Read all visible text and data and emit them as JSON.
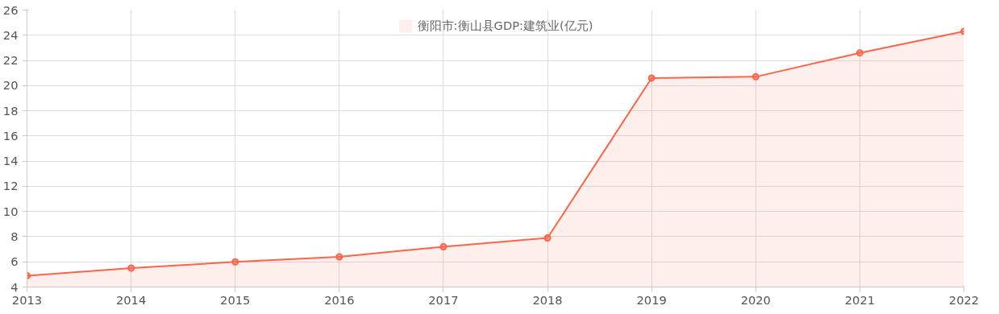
{
  "chart_data": {
    "type": "area",
    "categories": [
      "2013",
      "2014",
      "2015",
      "2016",
      "2017",
      "2018",
      "2019",
      "2020",
      "2021",
      "2022"
    ],
    "series": [
      {
        "name": "衡阳市:衡山县GDP:建筑业(亿元)",
        "color": "#ff6347",
        "values": [
          4.9,
          5.5,
          6.0,
          6.4,
          7.2,
          7.9,
          20.6,
          20.7,
          22.6,
          24.3
        ]
      }
    ],
    "ylim": [
      4,
      26
    ],
    "yticks": [
      4,
      6,
      8,
      10,
      12,
      14,
      16,
      18,
      20,
      22,
      24,
      26
    ],
    "grid": true,
    "legend": "top",
    "marker": "circle",
    "line_style": "solid"
  }
}
